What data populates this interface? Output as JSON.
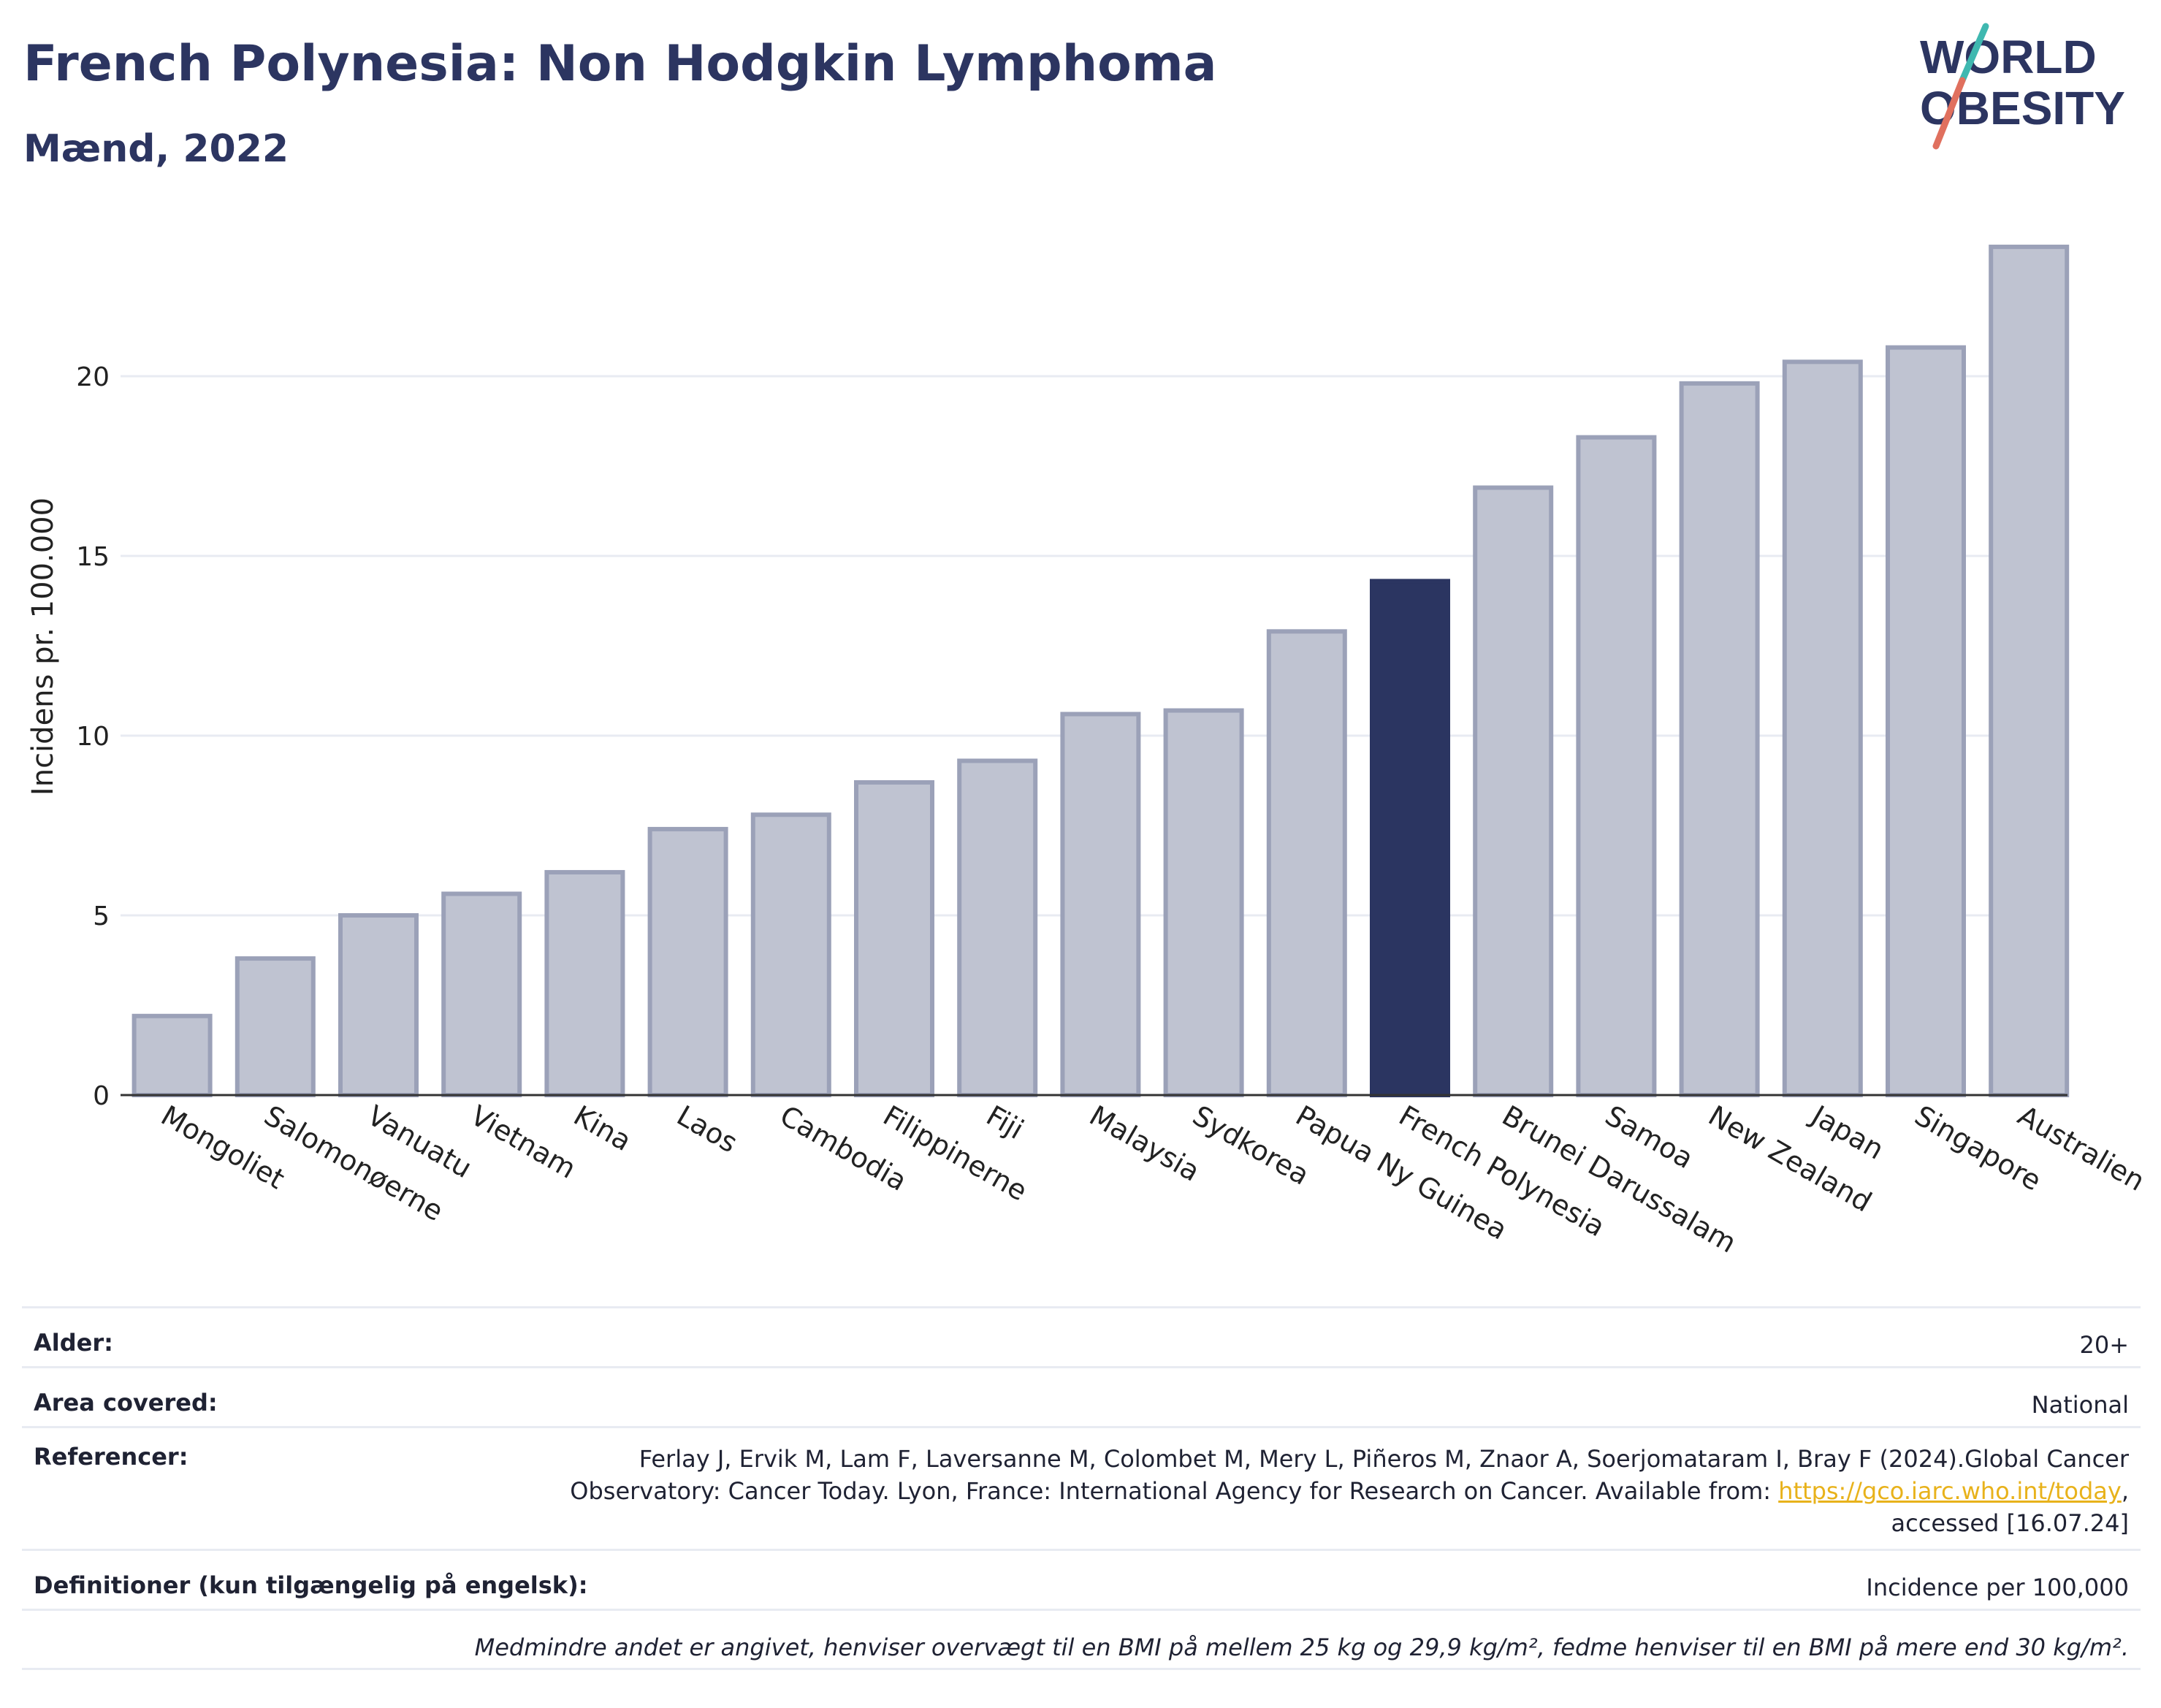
{
  "header": {
    "title": "French Polynesia: Non Hodgkin Lymphoma",
    "subtitle": "Mænd, 2022"
  },
  "logo": {
    "line1": "WORLD",
    "line2": "OBESITY"
  },
  "colors": {
    "bar": "#bfc3d1",
    "bar_stroke": "#9ba1b8",
    "highlight": "#2b3561",
    "grid": "#e8ebf2"
  },
  "chart_data": {
    "type": "bar",
    "ylabel": "Incidens pr. 100.000",
    "xlabel": "",
    "ylim": [
      0,
      24
    ],
    "yticks": [
      0,
      5,
      10,
      15,
      20
    ],
    "grid": true,
    "highlight": "French Polynesia",
    "categories": [
      "Mongoliet",
      "Salomonøerne",
      "Vanuatu",
      "Vietnam",
      "Kina",
      "Laos",
      "Cambodia",
      "Filippinerne",
      "Fiji",
      "Malaysia",
      "Sydkorea",
      "Papua Ny Guinea",
      "French Polynesia",
      "Brunei Darussalam",
      "Samoa",
      "New Zealand",
      "Japan",
      "Singapore",
      "Australien"
    ],
    "values": [
      2.2,
      3.8,
      5.0,
      5.6,
      6.2,
      7.4,
      7.8,
      8.7,
      9.3,
      10.6,
      10.7,
      12.9,
      14.3,
      16.9,
      18.3,
      19.8,
      20.4,
      20.8,
      23.6
    ]
  },
  "meta": {
    "age_label": "Alder:",
    "age_value": "20+",
    "area_label": "Area covered:",
    "area_value": "National",
    "ref_label": "Referencer:",
    "ref_line1": "Ferlay J, Ervik M, Lam F, Laversanne M, Colombet M, Mery L, Piñeros M, Znaor A, Soerjomataram I, Bray F (2024).Global Cancer",
    "ref_line2_pre": "Observatory: Cancer Today. Lyon, France: International Agency for Research on Cancer. Available from: ",
    "ref_link": "https://gco.iarc.who.int/today",
    "ref_line2_post": ",",
    "ref_line3": "accessed [16.07.24]",
    "def_label": "Definitioner (kun tilgængelig på engelsk):",
    "def_value": "Incidence per 100,000",
    "note": "Medmindre andet er angivet, henviser overvægt til en BMI på mellem 25 kg og 29,9 kg/m², fedme henviser til en BMI på mere end 30 kg/m²."
  }
}
